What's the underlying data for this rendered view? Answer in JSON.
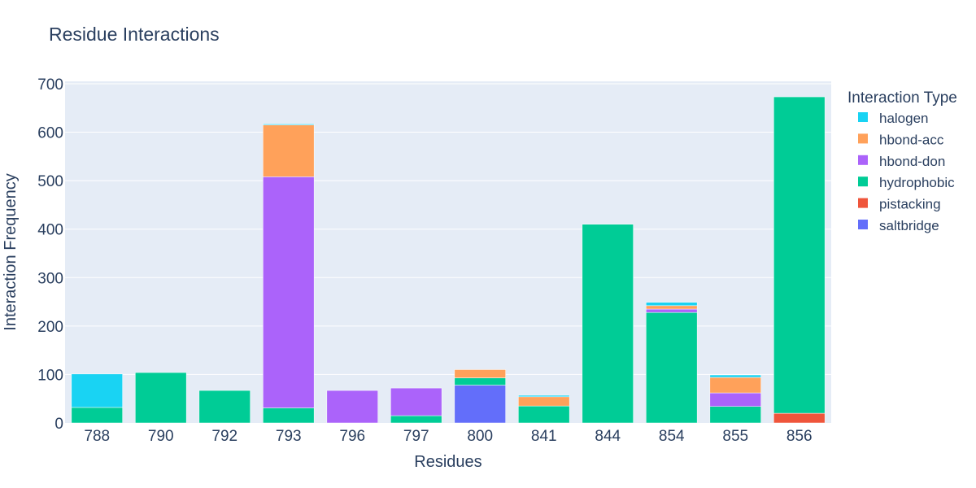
{
  "chart_data": {
    "type": "bar",
    "barmode": "stack",
    "title": "Residue Interactions",
    "xlabel": "Residues",
    "ylabel": "Interaction Frequency",
    "ylim": [
      0,
      705
    ],
    "yticks": [
      0,
      100,
      200,
      300,
      400,
      500,
      600,
      700
    ],
    "grid": true,
    "legend_title": "Interaction Type",
    "legend_position": "right",
    "categories": [
      "788",
      "790",
      "792",
      "793",
      "796",
      "797",
      "800",
      "841",
      "844",
      "854",
      "855",
      "856"
    ],
    "series": [
      {
        "name": "saltbridge",
        "color": "#636efa",
        "values": [
          0,
          0,
          0,
          0,
          0,
          0,
          78,
          0,
          0,
          0,
          0,
          0
        ]
      },
      {
        "name": "pistacking",
        "color": "#ef553b",
        "values": [
          0,
          0,
          0,
          0,
          0,
          0,
          0,
          0,
          0,
          0,
          0,
          20
        ]
      },
      {
        "name": "hydrophobic",
        "color": "#00cc96",
        "values": [
          32,
          104,
          67,
          31,
          0,
          15,
          15,
          35,
          410,
          228,
          34,
          653
        ]
      },
      {
        "name": "hbond-don",
        "color": "#ab63fa",
        "values": [
          0,
          0,
          0,
          477,
          67,
          57,
          0,
          0,
          0,
          7,
          28,
          0
        ]
      },
      {
        "name": "hbond-acc",
        "color": "#ffa15a",
        "values": [
          0,
          0,
          0,
          107,
          0,
          0,
          17,
          19,
          0,
          7,
          32,
          0
        ]
      },
      {
        "name": "halogen",
        "color": "#19d3f3",
        "values": [
          69,
          0,
          0,
          2,
          0,
          0,
          0,
          3,
          0,
          7,
          5,
          0
        ]
      }
    ],
    "legend_order": [
      "halogen",
      "hbond-acc",
      "hbond-don",
      "hydrophobic",
      "pistacking",
      "saltbridge"
    ]
  }
}
